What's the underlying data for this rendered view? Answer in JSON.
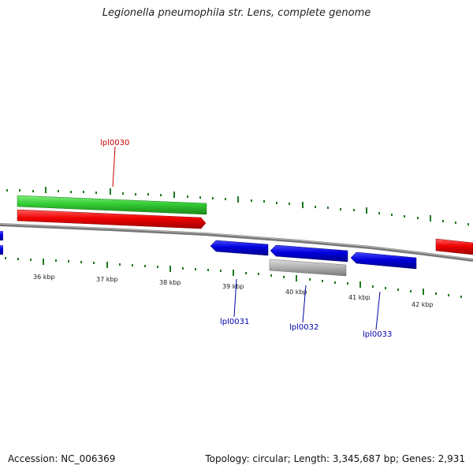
{
  "title": "Legionella pneumophila str. Lens, complete genome",
  "footer": {
    "accession": "Accession: NC_006369",
    "summary": "Topology: circular; Length: 3,345,687 bp; Genes: 2,931"
  },
  "scale": {
    "tick_labels": [
      "36 kbp",
      "37 kbp",
      "38 kbp",
      "39 kbp",
      "40 kbp",
      "41 kbp",
      "42 kbp"
    ]
  },
  "genes": {
    "labels": [
      "lpl0030",
      "lpl0031",
      "lpl0032",
      "lpl0033"
    ]
  },
  "colors": {
    "forward_strand": "#ee0000",
    "reverse_strand": "#0000dd",
    "feature_green": "#33cc33",
    "feature_gray": "#b3b3b3",
    "backbone": "#777777",
    "ticks": "#1e7a1e",
    "label_red": "#cc0000",
    "label_blue": "#0000aa"
  }
}
